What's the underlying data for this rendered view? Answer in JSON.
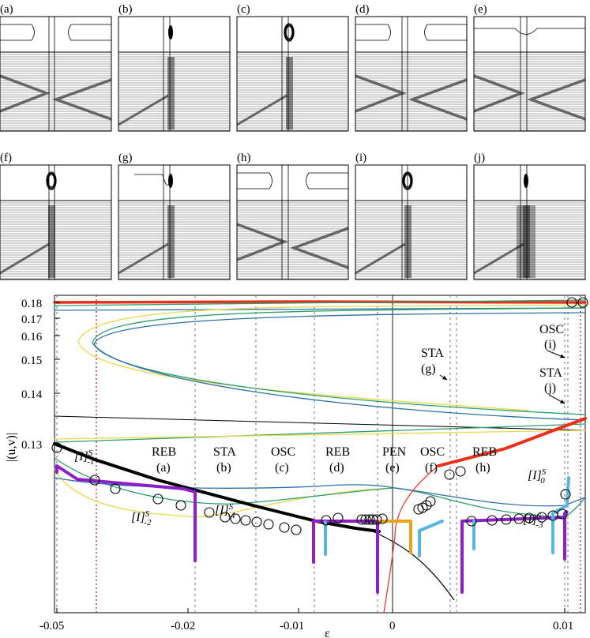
{
  "panels": [
    {
      "label": "(a)"
    },
    {
      "label": "(b)"
    },
    {
      "label": "(c)"
    },
    {
      "label": "(d)"
    },
    {
      "label": "(e)"
    },
    {
      "label": "(f)"
    },
    {
      "label": "(g)"
    },
    {
      "label": "(h)"
    },
    {
      "label": "(i)"
    },
    {
      "label": "(j)"
    }
  ],
  "chart_data": {
    "type": "line",
    "xlabel": "ε",
    "ylabel": "|(u,v)|",
    "xtick_labels": [
      "-0.05",
      "-0.02",
      "-0.01",
      "0",
      "0.01"
    ],
    "ytick_labels": [
      "0.18",
      "0.17",
      "0.16",
      "0.15",
      "0.14",
      "0.13"
    ],
    "regimes": [
      {
        "name": "REB",
        "label": "(a)"
      },
      {
        "name": "STA",
        "label": "(b)"
      },
      {
        "name": "OSC",
        "label": "(c)"
      },
      {
        "name": "REB",
        "label": "(d)"
      },
      {
        "name": "PEN",
        "label": "(e)"
      },
      {
        "name": "OSC",
        "label": "(f)"
      },
      {
        "name": "REB",
        "label": "(h)"
      }
    ],
    "annotations": [
      {
        "name": "OSC",
        "label": "(i)"
      },
      {
        "name": "STA",
        "label": "(g)"
      },
      {
        "name": "STA",
        "label": "(j)"
      }
    ],
    "branch_labels": [
      {
        "base": "[I]",
        "sup": "S",
        "sub": "-1"
      },
      {
        "base": "[I]",
        "sup": "S",
        "sub": "-2"
      },
      {
        "base": "[I]",
        "sup": "S",
        "sub": "-4"
      },
      {
        "base": "[I]",
        "sup": "S",
        "sub": "0"
      },
      {
        "base": "[I]",
        "sup": "S",
        "sub": "-3"
      }
    ],
    "colors": {
      "black": "#000000",
      "red": "#e8301c",
      "purple": "#8e1fc7",
      "lightblue": "#58b4e0",
      "orange": "#e8a318",
      "yellow": "#e8d84a",
      "green": "#2a9e6e",
      "blue": "#2f6fa8",
      "darkred_dotted": "#c0202a",
      "grey_dotted": "#888888"
    }
  }
}
